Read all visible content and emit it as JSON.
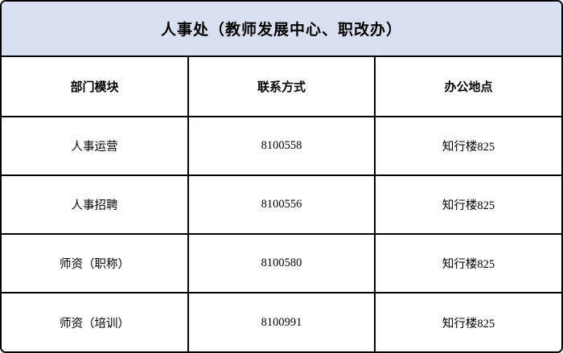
{
  "table": {
    "title": "人事处（教师发展中心、职改办）",
    "title_bg_color": "#d9e0f2",
    "border_color": "#000000",
    "columns": {
      "module": "部门模块",
      "contact": "联系方式",
      "location": "办公地点"
    },
    "rows": [
      {
        "module": "人事运营",
        "contact": "8100558",
        "location": "知行楼825"
      },
      {
        "module": "人事招聘",
        "contact": "8100556",
        "location": "知行楼825"
      },
      {
        "module": "师资（职称）",
        "contact": "8100580",
        "location": "知行楼825"
      },
      {
        "module": "师资（培训）",
        "contact": "8100991",
        "location": "知行楼825"
      }
    ]
  }
}
